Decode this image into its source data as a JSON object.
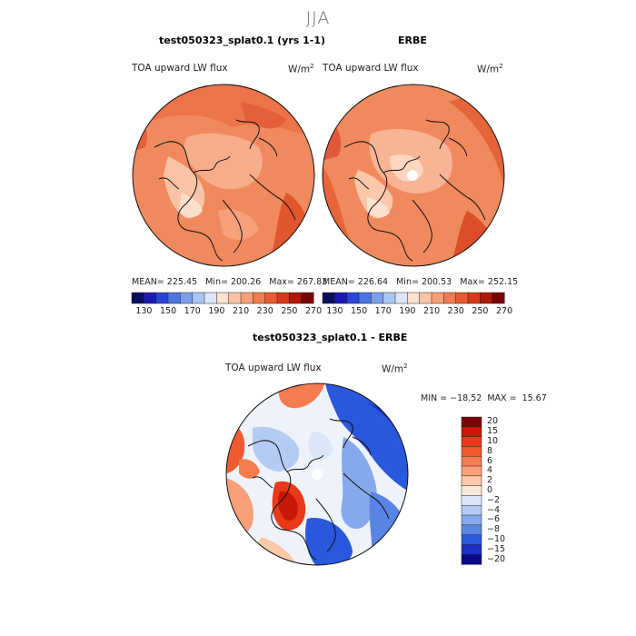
{
  "supertitle": "JJA",
  "panel_left": {
    "title": "test050323_splat0.1 (yrs 1-1)",
    "variable": "TOA upward LW flux",
    "units": "W/m",
    "units_exp": "2",
    "mean_label": "MEAN=",
    "mean": "225.45",
    "min_label": "Min=",
    "min": "200.26",
    "max_label": "Max=",
    "max": "267.83"
  },
  "panel_right": {
    "title": "ERBE",
    "variable": "TOA upward LW flux",
    "units": "W/m",
    "units_exp": "2",
    "mean_label": "MEAN=",
    "mean": "226.64",
    "min_label": "Min=",
    "min": "200.53",
    "max_label": "Max=",
    "max": "252.15"
  },
  "colorbar_top": {
    "ticks": [
      "130",
      "150",
      "170",
      "190",
      "210",
      "230",
      "250",
      "270"
    ],
    "colors": [
      "#08105e",
      "#1a1ab4",
      "#2a44d8",
      "#4a74e0",
      "#7aa0ec",
      "#aac6f4",
      "#dce8fa",
      "#fbe3cf",
      "#fcc4a4",
      "#f8a078",
      "#f07c52",
      "#e85a30",
      "#d63a18",
      "#b01808",
      "#7a0404"
    ]
  },
  "panel_diff": {
    "title": "test050323_splat0.1 - ERBE",
    "variable": "TOA upward LW flux",
    "units": "W/m",
    "units_exp": "2",
    "min_label": "MIN =",
    "min": "−18.52",
    "max_label": "MAX =",
    "max": "15.67"
  },
  "colorbar_diff": {
    "levels": [
      "20",
      "15",
      "10",
      "8",
      "6",
      "4",
      "2",
      "0",
      "−2",
      "−4",
      "−6",
      "−8",
      "−10",
      "−15",
      "−20"
    ],
    "colors": [
      "#7c0404",
      "#c81808",
      "#e83a1a",
      "#f05a30",
      "#f47c50",
      "#f8a07a",
      "#fcc8a8",
      "#fce8d8",
      "#dce8fa",
      "#b4ccf4",
      "#86a8ec",
      "#5a84e4",
      "#2a58dc",
      "#1a2ec8",
      "#0a0a8c"
    ]
  },
  "map_colors": {
    "left_base": "#f08a5e",
    "right_base": "#f08a5e",
    "diff_base": "#f4f4f8"
  }
}
